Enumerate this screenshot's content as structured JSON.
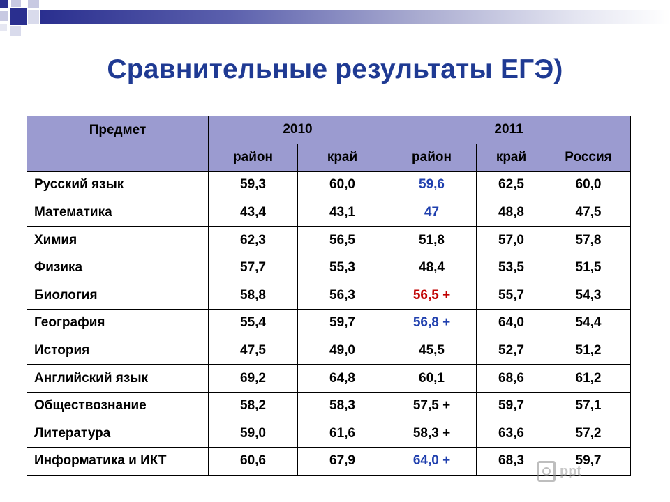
{
  "title": "Сравнительные результаты ЕГЭ)",
  "table": {
    "header": {
      "subject": "Предмет",
      "year1": "2010",
      "year2": "2011",
      "sub": [
        "район",
        "край",
        "район",
        "край",
        "Россия"
      ]
    },
    "rows": [
      {
        "subject": "Русский язык",
        "values": [
          "59,3",
          "60,0",
          "59,6",
          "62,5",
          "60,0"
        ],
        "highlight": "blue"
      },
      {
        "subject": "Математика",
        "values": [
          "43,4",
          "43,1",
          "47",
          "48,8",
          "47,5"
        ],
        "highlight": "blue"
      },
      {
        "subject": "Химия",
        "values": [
          "62,3",
          "56,5",
          "51,8",
          "57,0",
          "57,8"
        ],
        "highlight": ""
      },
      {
        "subject": "Физика",
        "values": [
          "57,7",
          "55,3",
          "48,4",
          "53,5",
          "51,5"
        ],
        "highlight": ""
      },
      {
        "subject": "Биология",
        "values": [
          "58,8",
          "56,3",
          "56,5 +",
          "55,7",
          "54,3"
        ],
        "highlight": "red"
      },
      {
        "subject": "География",
        "values": [
          "55,4",
          "59,7",
          "56,8 +",
          "64,0",
          "54,4"
        ],
        "highlight": "blue"
      },
      {
        "subject": "История",
        "values": [
          "47,5",
          "49,0",
          "45,5",
          "52,7",
          "51,2"
        ],
        "highlight": ""
      },
      {
        "subject": "Английский язык",
        "values": [
          "69,2",
          "64,8",
          "60,1",
          "68,6",
          "61,2"
        ],
        "highlight": ""
      },
      {
        "subject": "Обществознание",
        "values": [
          "58,2",
          "58,3",
          "57,5 +",
          "59,7",
          "57,1"
        ],
        "highlight": ""
      },
      {
        "subject": "Литература",
        "values": [
          "59,0",
          "61,6",
          "58,3 +",
          "63,6",
          "57,2"
        ],
        "highlight": ""
      },
      {
        "subject": "Информатика и ИКТ",
        "values": [
          "60,6",
          "67,9",
          "64,0 +",
          "68,3",
          "59,7"
        ],
        "highlight": "blue"
      }
    ]
  },
  "colors": {
    "title": "#1f3a93",
    "header_bg": "#9b9bd0",
    "blue_value": "#1f3fae",
    "red_value": "#c00000"
  },
  "watermark": {
    "text": "ppt",
    "icon": "document-logo-icon"
  }
}
